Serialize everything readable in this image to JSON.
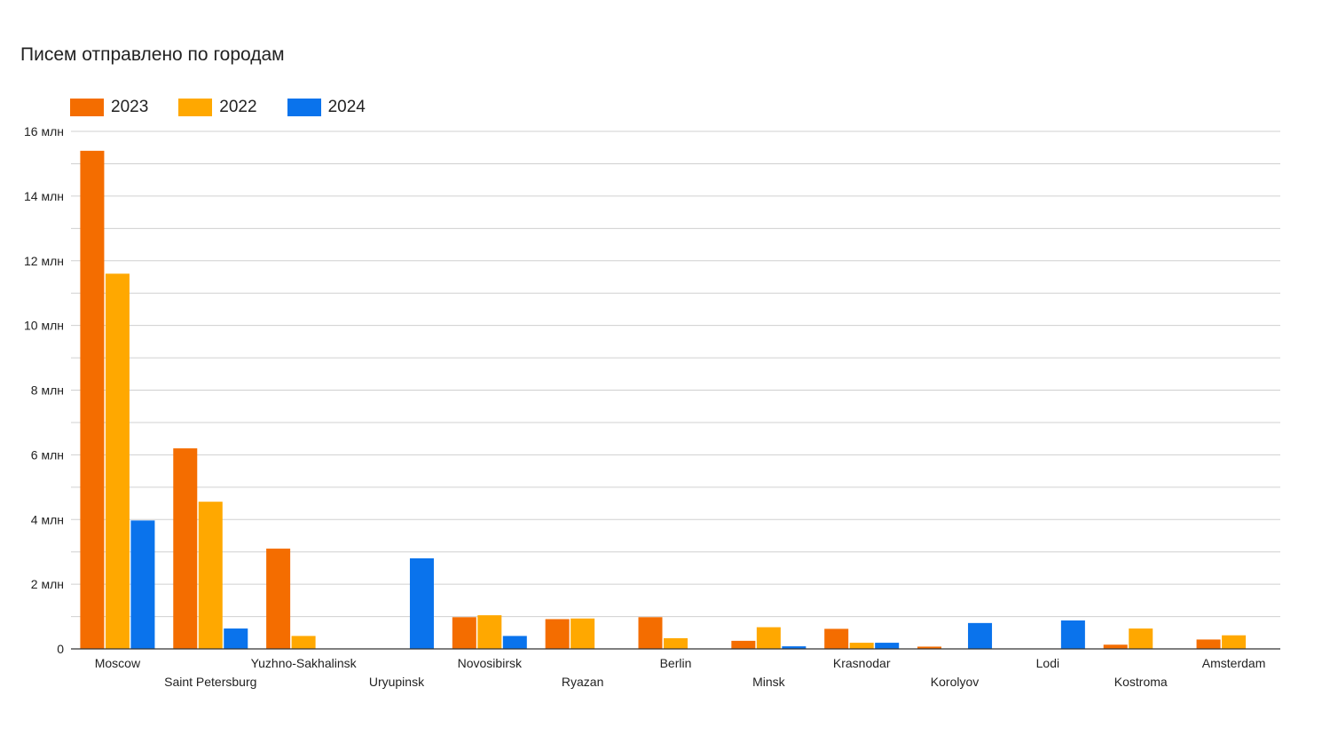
{
  "chart_data": {
    "type": "bar",
    "title": "Писем отправлено по городам",
    "xlabel": "",
    "ylabel": "",
    "ylim": [
      0,
      16000000
    ],
    "yticks": [
      {
        "value": 0,
        "label": "0"
      },
      {
        "value": 2000000,
        "label": "2 млн"
      },
      {
        "value": 4000000,
        "label": "4 млн"
      },
      {
        "value": 6000000,
        "label": "6 млн"
      },
      {
        "value": 8000000,
        "label": "8 млн"
      },
      {
        "value": 10000000,
        "label": "10 млн"
      },
      {
        "value": 12000000,
        "label": "12 млн"
      },
      {
        "value": 14000000,
        "label": "14 млн"
      },
      {
        "value": 16000000,
        "label": "16 млн"
      }
    ],
    "grid": true,
    "legend_position": "top-left",
    "categories": [
      "Moscow",
      "Saint Petersburg",
      "Yuzhno-Sakhalinsk",
      "Uryupinsk",
      "Novosibirsk",
      "Ryazan",
      "Berlin",
      "Minsk",
      "Krasnodar",
      "Korolyov",
      "Lodi",
      "Kostroma",
      "Amsterdam"
    ],
    "series": [
      {
        "name": "2023",
        "color": "#f46d00",
        "values": [
          15400000,
          6200000,
          3100000,
          0,
          980000,
          920000,
          980000,
          250000,
          620000,
          70000,
          0,
          130000,
          290000
        ]
      },
      {
        "name": "2022",
        "color": "#ffa800",
        "values": [
          11600000,
          4550000,
          400000,
          0,
          1040000,
          940000,
          330000,
          670000,
          190000,
          0,
          0,
          630000,
          420000
        ]
      },
      {
        "name": "2024",
        "color": "#0a73ec",
        "values": [
          3970000,
          630000,
          0,
          2800000,
          400000,
          0,
          0,
          80000,
          190000,
          800000,
          880000,
          0,
          0
        ]
      }
    ]
  }
}
